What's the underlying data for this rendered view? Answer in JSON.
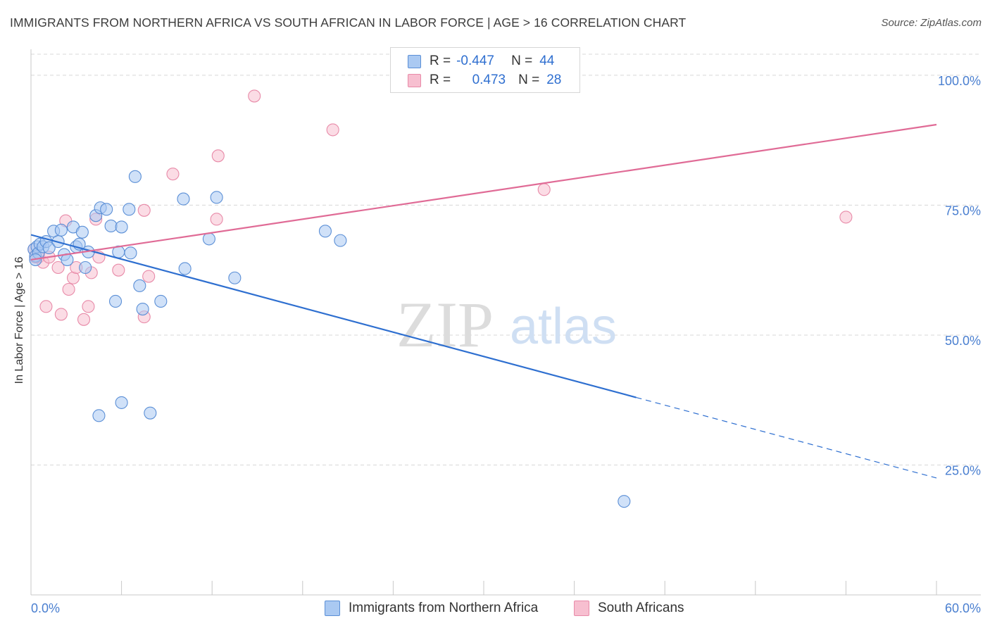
{
  "title": "IMMIGRANTS FROM NORTHERN AFRICA VS SOUTH AFRICAN IN LABOR FORCE | AGE > 16 CORRELATION CHART",
  "source": "Source: ZipAtlas.com",
  "watermark": {
    "zip": "ZIP",
    "atlas": "atlas"
  },
  "legend": {
    "blue": {
      "r_label": "R =",
      "r_value": "-0.447",
      "n_label": "N =",
      "n_value": "44"
    },
    "pink": {
      "r_label": "R =",
      "r_value": "0.473",
      "n_label": "N =",
      "n_value": "28"
    }
  },
  "colors": {
    "blue_fill": "#aac9f2",
    "blue_stroke": "#5b8fd6",
    "blue_line": "#2e6fd0",
    "pink_fill": "#f7bfd0",
    "pink_stroke": "#e88aa8",
    "pink_line": "#e06b96",
    "tick_text": "#4a7fd0",
    "grid": "#d8d8d8"
  },
  "chart_data": {
    "type": "scatter",
    "title": "IMMIGRANTS FROM NORTHERN AFRICA VS SOUTH AFRICAN IN LABOR FORCE | AGE > 16 CORRELATION CHART",
    "xlabel": "",
    "ylabel": "In Labor Force | Age > 16",
    "xlim": [
      0,
      60
    ],
    "ylim": [
      0,
      105
    ],
    "x_tick_labels": [
      {
        "value": 0,
        "label": "0.0%"
      },
      {
        "value": 60,
        "label": "60.0%"
      }
    ],
    "y_tick_labels": [
      {
        "value": 100,
        "label": "100.0%"
      },
      {
        "value": 75,
        "label": "75.0%"
      },
      {
        "value": 50,
        "label": "50.0%"
      },
      {
        "value": 25,
        "label": "25.0%"
      }
    ],
    "series": [
      {
        "name": "Immigrants from Northern Africa",
        "color": "blue",
        "points": [
          [
            0.2,
            66.5
          ],
          [
            0.3,
            65.2
          ],
          [
            0.4,
            67.0
          ],
          [
            0.5,
            65.8
          ],
          [
            0.6,
            67.5
          ],
          [
            0.8,
            67.0
          ],
          [
            1.0,
            68.0
          ],
          [
            1.2,
            66.8
          ],
          [
            1.5,
            70.0
          ],
          [
            1.8,
            68.0
          ],
          [
            2.0,
            70.2
          ],
          [
            2.2,
            65.5
          ],
          [
            2.4,
            64.5
          ],
          [
            2.8,
            70.8
          ],
          [
            3.0,
            67.0
          ],
          [
            3.2,
            67.5
          ],
          [
            3.4,
            69.8
          ],
          [
            3.6,
            63.0
          ],
          [
            3.8,
            66.0
          ],
          [
            4.3,
            73.0
          ],
          [
            4.6,
            74.5
          ],
          [
            5.0,
            74.2
          ],
          [
            5.3,
            71.0
          ],
          [
            5.6,
            56.5
          ],
          [
            5.8,
            66.0
          ],
          [
            6.0,
            70.8
          ],
          [
            6.5,
            74.2
          ],
          [
            6.6,
            65.8
          ],
          [
            6.9,
            80.5
          ],
          [
            7.2,
            59.5
          ],
          [
            7.4,
            55.0
          ],
          [
            8.6,
            56.5
          ],
          [
            10.1,
            76.2
          ],
          [
            10.2,
            62.8
          ],
          [
            11.8,
            68.5
          ],
          [
            12.3,
            76.5
          ],
          [
            13.5,
            61.0
          ],
          [
            19.5,
            70.0
          ],
          [
            20.5,
            68.2
          ],
          [
            4.5,
            34.5
          ],
          [
            6.0,
            37.0
          ],
          [
            7.9,
            35.0
          ],
          [
            39.3,
            18.0
          ],
          [
            0.3,
            64.5
          ]
        ],
        "trend": {
          "x0": 0,
          "y0": 69.3,
          "x1": 40.1,
          "y1": 38.0,
          "dash_x1": 60,
          "dash_y1": 22.5
        }
      },
      {
        "name": "South Africans",
        "color": "pink",
        "points": [
          [
            0.2,
            66.5
          ],
          [
            0.5,
            65.0
          ],
          [
            0.8,
            64.0
          ],
          [
            1.0,
            55.5
          ],
          [
            1.2,
            65.0
          ],
          [
            1.8,
            63.0
          ],
          [
            2.0,
            54.0
          ],
          [
            2.3,
            72.0
          ],
          [
            2.5,
            58.8
          ],
          [
            2.8,
            61.0
          ],
          [
            3.0,
            63.0
          ],
          [
            3.5,
            53.0
          ],
          [
            3.8,
            55.5
          ],
          [
            4.0,
            62.0
          ],
          [
            4.3,
            72.3
          ],
          [
            4.5,
            65.0
          ],
          [
            5.8,
            62.5
          ],
          [
            7.5,
            74.0
          ],
          [
            7.5,
            53.5
          ],
          [
            7.8,
            61.3
          ],
          [
            9.4,
            81.0
          ],
          [
            12.3,
            72.3
          ],
          [
            12.4,
            84.5
          ],
          [
            14.8,
            96.0
          ],
          [
            20.0,
            89.5
          ],
          [
            34.0,
            78.0
          ],
          [
            54.0,
            72.7
          ],
          [
            0.3,
            65.0
          ]
        ],
        "trend": {
          "x0": 0,
          "y0": 64.5,
          "x1": 60,
          "y1": 90.5
        }
      }
    ]
  }
}
